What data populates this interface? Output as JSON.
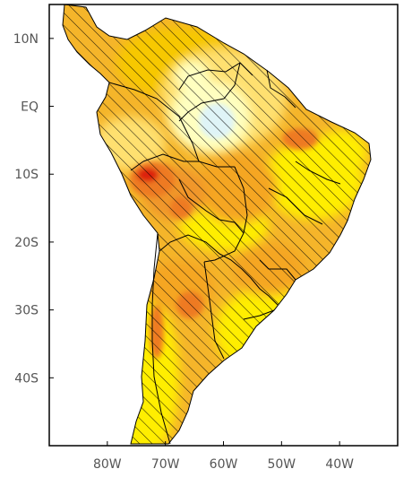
{
  "figure": {
    "lat_ticks": [
      {
        "value": 10,
        "label": "10N"
      },
      {
        "value": 0,
        "label": "EQ"
      },
      {
        "value": -10,
        "label": "10S"
      },
      {
        "value": -20,
        "label": "20S"
      },
      {
        "value": -30,
        "label": "30S"
      },
      {
        "value": -40,
        "label": "40S"
      }
    ],
    "lon_ticks": [
      {
        "value": -80,
        "label": "80W"
      },
      {
        "value": -70,
        "label": "70W"
      },
      {
        "value": -60,
        "label": "60W"
      },
      {
        "value": -50,
        "label": "50W"
      },
      {
        "value": -40,
        "label": "40W"
      }
    ],
    "extent": {
      "lon": [
        -90,
        -30
      ],
      "lat": [
        -50,
        15
      ]
    },
    "colors": {
      "light_yellow": "#ffffc0",
      "yellow": "#ffee00",
      "gold": "#f7c800",
      "orange": "#f5a623",
      "dark_orange": "#ee7a22",
      "red": "#dd2211",
      "pale_blue": "#dff4f7",
      "borders": "#000000",
      "hatch": "#000000"
    },
    "notes": "Filled-contour map over South America with diagonal hatching over land; no colorbar or title shown."
  }
}
